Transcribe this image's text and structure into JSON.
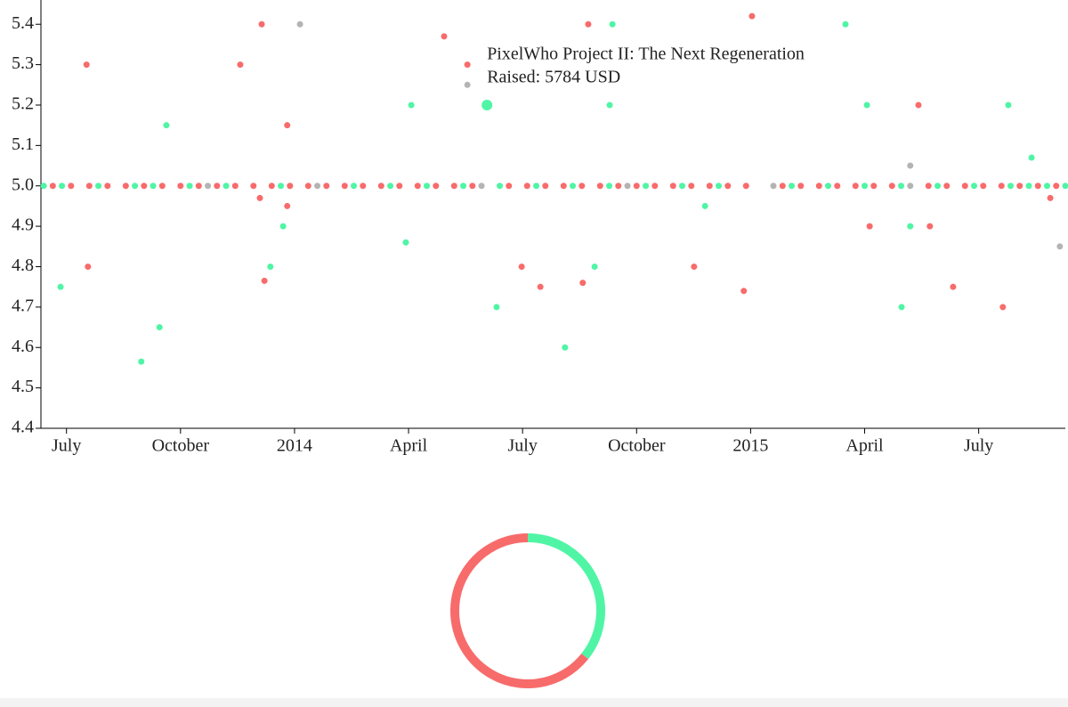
{
  "chart_data": [
    {
      "type": "scatter",
      "xlim": [
        2013.444,
        2015.69
      ],
      "ylim": [
        4.4,
        5.46
      ],
      "xticks": [
        {
          "value": 2013.5,
          "label": "July"
        },
        {
          "value": 2013.75,
          "label": "October"
        },
        2014,
        {
          "value": 2014.25,
          "label": "April"
        },
        {
          "value": 2014.5,
          "label": "July"
        },
        {
          "value": 2014.75,
          "label": "October"
        },
        2015,
        {
          "value": 2015.25,
          "label": "April"
        },
        {
          "value": 2015.5,
          "label": "July"
        }
      ],
      "yticks": [
        4.4,
        4.5,
        4.6,
        4.7,
        4.8,
        4.9,
        {
          "value": 5,
          "label": "5.0"
        },
        5.1,
        5.2,
        5.3,
        5.4
      ],
      "series": [
        {
          "color": "#f86b6b",
          "x": [
            2013.544,
            2013.547,
            2013.881,
            2013.928,
            2013.924,
            2013.934,
            2013.984,
            2013.984,
            2014.328,
            2014.379,
            2014.498,
            2014.539,
            2014.632,
            2014.644,
            2014.876,
            2014.985,
            2015.003,
            2015.261,
            2015.368,
            2015.393,
            2015.444,
            2015.553,
            2015.657,
            2013.47,
            2013.51,
            2013.55,
            2013.59,
            2013.63,
            2013.67,
            2013.71,
            2013.75,
            2013.79,
            2013.83,
            2013.87,
            2013.91,
            2013.95,
            2013.99,
            2014.03,
            2014.07,
            2014.11,
            2014.15,
            2014.19,
            2014.23,
            2014.27,
            2014.31,
            2014.35,
            2014.39,
            2014.47,
            2014.51,
            2014.55,
            2014.59,
            2014.63,
            2014.67,
            2014.71,
            2014.75,
            2014.79,
            2014.83,
            2014.87,
            2014.91,
            2014.95,
            2014.99,
            2015.07,
            2015.11,
            2015.15,
            2015.19,
            2015.23,
            2015.27,
            2015.31,
            2015.39,
            2015.43,
            2015.47,
            2015.51,
            2015.55,
            2015.59,
            2015.63,
            2015.67
          ],
          "values": [
            5.3,
            4.8,
            5.3,
            5.4,
            4.97,
            4.765,
            5.15,
            4.95,
            5.37,
            5.3,
            4.8,
            4.75,
            4.76,
            5.4,
            4.8,
            4.74,
            5.42,
            4.9,
            5.2,
            4.9,
            4.75,
            4.7,
            4.97,
            5,
            5,
            5,
            5,
            5,
            5,
            5,
            5,
            5,
            5,
            5,
            5,
            5,
            5,
            5,
            5,
            5,
            5,
            5,
            5,
            5,
            5,
            5,
            5,
            5,
            5,
            5,
            5,
            5,
            5,
            5,
            5,
            5,
            5,
            5,
            5,
            5,
            5,
            5,
            5,
            5,
            5,
            5,
            5,
            5,
            5,
            5,
            5,
            5,
            5,
            5,
            5,
            5
          ]
        },
        {
          "color": "#4ff5a5",
          "x": [
            2013.487,
            2013.664,
            2013.704,
            2013.719,
            2013.947,
            2013.975,
            2014.256,
            2014.244,
            2014.443,
            2014.593,
            2014.658,
            2014.691,
            2014.697,
            2014.9,
            2015.208,
            2015.255,
            2015.331,
            2015.35,
            2015.565,
            2015.616,
            2013.45,
            2013.49,
            2013.57,
            2013.65,
            2013.69,
            2013.77,
            2013.85,
            2013.97,
            2014.13,
            2014.21,
            2014.29,
            2014.37,
            2014.45,
            2014.53,
            2014.61,
            2014.69,
            2014.77,
            2014.85,
            2014.93,
            2015.09,
            2015.17,
            2015.25,
            2015.33,
            2015.41,
            2015.49,
            2015.57,
            2015.61,
            2015.65,
            2015.69
          ],
          "values": [
            4.75,
            4.565,
            4.65,
            5.15,
            4.8,
            4.9,
            5.2,
            4.86,
            4.7,
            4.6,
            4.8,
            5.2,
            5.4,
            4.95,
            5.4,
            5.2,
            4.7,
            4.9,
            5.2,
            5.07,
            5,
            5,
            5,
            5,
            5,
            5,
            5,
            5,
            5,
            5,
            5,
            5,
            5,
            5,
            5,
            5,
            5,
            5,
            5,
            5,
            5,
            5,
            5,
            5,
            5,
            5,
            5,
            5,
            5
          ]
        },
        {
          "color": "#b4b4b4",
          "x": [
            2014.012,
            2014.379,
            2015.35,
            2015.678,
            2013.81,
            2014.05,
            2014.41,
            2014.73,
            2015.05,
            2015.35
          ],
          "values": [
            5.4,
            5.25,
            5.05,
            4.85,
            5,
            5,
            5,
            5,
            5,
            5
          ]
        }
      ],
      "highlight": {
        "x": 2014.422,
        "y": 5.2,
        "color": "#4ff5a5",
        "title": "PixelWho Project II: The Next Regeneration",
        "text": "Raised: 5784 USD"
      }
    },
    {
      "type": "donut",
      "values": [
        35.7,
        64.3
      ],
      "colors": [
        "#4ff5a5",
        "#f86b6b"
      ]
    }
  ]
}
